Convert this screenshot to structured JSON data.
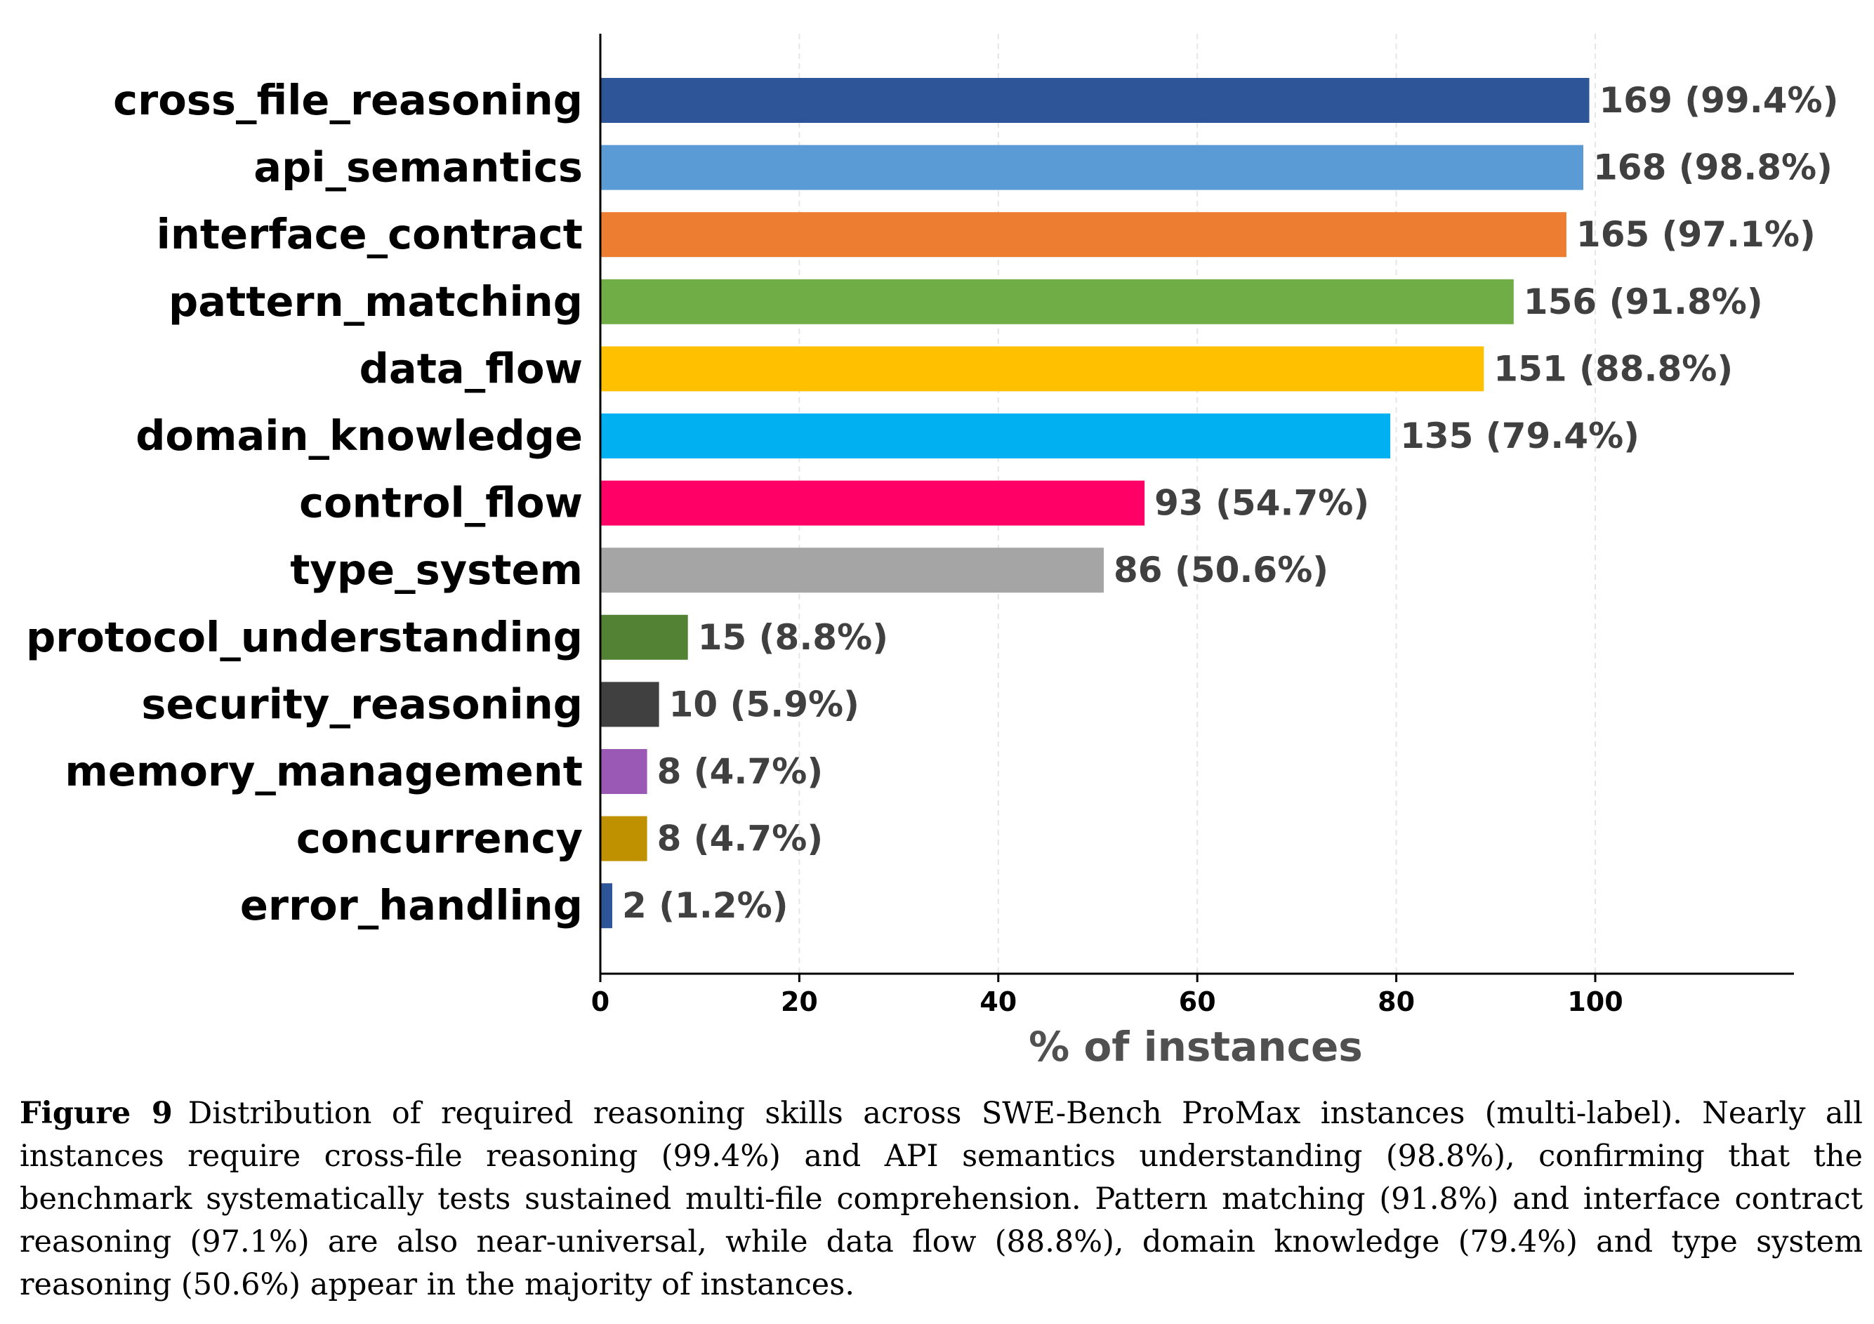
{
  "chart_data": {
    "type": "bar",
    "orientation": "horizontal",
    "categories": [
      "cross_file_reasoning",
      "api_semantics",
      "interface_contract",
      "pattern_matching",
      "data_flow",
      "domain_knowledge",
      "control_flow",
      "type_system",
      "protocol_understanding",
      "security_reasoning",
      "memory_management",
      "concurrency",
      "error_handling"
    ],
    "values": [
      99.4,
      98.8,
      97.1,
      91.8,
      88.8,
      79.4,
      54.7,
      50.6,
      8.8,
      5.9,
      4.7,
      4.7,
      1.2
    ],
    "data_labels": [
      "169 (99.4%)",
      "168 (98.8%)",
      "165 (97.1%)",
      "156 (91.8%)",
      "151 (88.8%)",
      "135 (79.4%)",
      "93 (54.7%)",
      "86 (50.6%)",
      "15 (8.8%)",
      "10 (5.9%)",
      "8 (4.7%)",
      "8 (4.7%)",
      "2 (1.2%)"
    ],
    "colors": [
      "#2e5597",
      "#5b9bd5",
      "#ed7d31",
      "#70ad47",
      "#ffc000",
      "#00b0f0",
      "#ff0066",
      "#a5a5a5",
      "#548235",
      "#404040",
      "#9b59b6",
      "#bf9000",
      "#2e5597"
    ],
    "xlabel": "% of instances",
    "ylabel": "",
    "title": "",
    "xlim": [
      0,
      120
    ],
    "xticks": [
      "0",
      "20",
      "40",
      "60",
      "80",
      "100"
    ],
    "grid": "vertical dashed, light"
  },
  "caption": {
    "label": "Figure 9",
    "text": "Distribution of required reasoning skills across SWE-Bench ProMax instances (multi-label). Nearly all instances require cross-file reasoning (99.4%) and API semantics understanding (98.8%), confirming that the benchmark systematically tests sustained multi-file comprehension. Pattern matching (91.8%) and interface contract reasoning (97.1%) are also near-universal, while data flow (88.8%), domain knowledge (79.4%) and type system reasoning (50.6%) appear in the majority of instances."
  }
}
